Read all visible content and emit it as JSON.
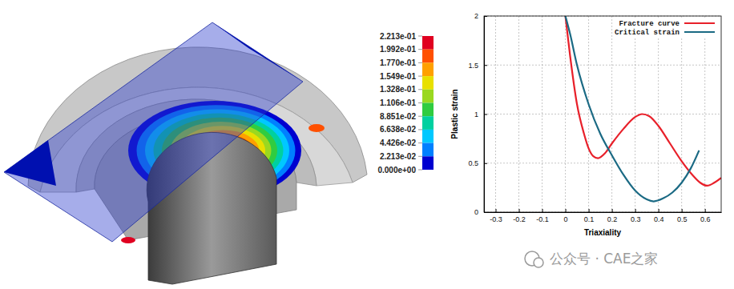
{
  "chart_data": [
    {
      "type": "contour",
      "colorbar": {
        "range": [
          0,
          0.2213
        ],
        "ticks": [
          {
            "value": 0.2213,
            "label": "2.213e-01"
          },
          {
            "value": 0.1992,
            "label": "1.992e-01"
          },
          {
            "value": 0.177,
            "label": "1.770e-01"
          },
          {
            "value": 0.1549,
            "label": "1.549e-01"
          },
          {
            "value": 0.1328,
            "label": "1.328e-01"
          },
          {
            "value": 0.1106,
            "label": "1.106e-01"
          },
          {
            "value": 0.08851,
            "label": "8.851e-02"
          },
          {
            "value": 0.06638,
            "label": "6.638e-02"
          },
          {
            "value": 0.04426,
            "label": "4.426e-02"
          },
          {
            "value": 0.02213,
            "label": "2.213e-02"
          },
          {
            "value": 0,
            "label": "0.000e+00"
          }
        ],
        "colors": [
          "#e00020",
          "#ff5000",
          "#ffa000",
          "#e8e000",
          "#9ad820",
          "#30cc40",
          "#00d0a0",
          "#00c8ff",
          "#0080ff",
          "#0000d0"
        ]
      }
    },
    {
      "type": "line",
      "xlabel": "Triaxiality",
      "ylabel": "Plastic strain",
      "xlim": [
        -0.35,
        0.67
      ],
      "ylim": [
        0,
        2
      ],
      "xticks": [
        -0.3,
        -0.2,
        -0.1,
        0,
        0.1,
        0.2,
        0.3,
        0.4,
        0.5,
        0.6
      ],
      "yticks": [
        0,
        0.5,
        1,
        1.5,
        2
      ],
      "grid": true,
      "legend": "upper right",
      "series": [
        {
          "name": "Fracture curve",
          "color": "#e8202a",
          "x": [
            0,
            0.02,
            0.05,
            0.08,
            0.1,
            0.12,
            0.14,
            0.17,
            0.2,
            0.25,
            0.3,
            0.33,
            0.36,
            0.4,
            0.45,
            0.5,
            0.55,
            0.58,
            0.61,
            0.64,
            0.67
          ],
          "values": [
            2.0,
            1.6,
            1.1,
            0.8,
            0.65,
            0.57,
            0.55,
            0.6,
            0.7,
            0.85,
            0.97,
            1.0,
            0.98,
            0.88,
            0.7,
            0.52,
            0.37,
            0.3,
            0.27,
            0.3,
            0.35
          ]
        },
        {
          "name": "Critical strain",
          "color": "#1b6a84",
          "x": [
            0,
            0.02,
            0.05,
            0.1,
            0.15,
            0.2,
            0.25,
            0.3,
            0.35,
            0.38,
            0.42,
            0.46,
            0.5,
            0.54,
            0.575
          ],
          "values": [
            2.0,
            1.82,
            1.5,
            1.1,
            0.8,
            0.58,
            0.38,
            0.22,
            0.13,
            0.11,
            0.14,
            0.2,
            0.3,
            0.45,
            0.63
          ]
        }
      ]
    }
  ],
  "watermark": "公众号 · CAE之家"
}
